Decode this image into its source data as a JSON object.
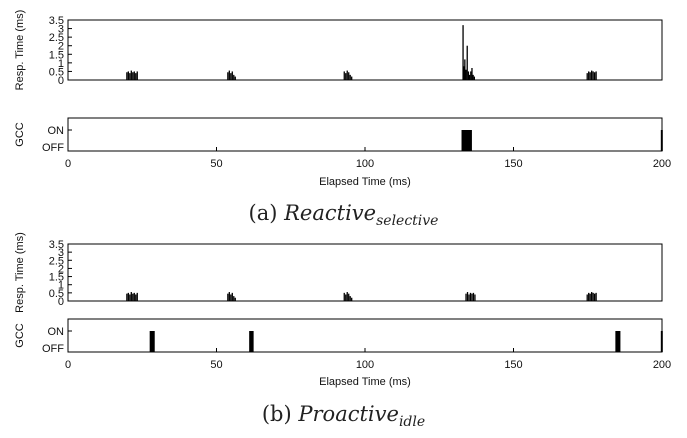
{
  "chart_data": [
    {
      "type": "bar",
      "panel": "a-response",
      "ylabel": "Resp. Time (ms)",
      "ylim": [
        0,
        3.5
      ],
      "xlim": [
        0,
        200
      ],
      "yticks": [
        "0",
        "0.5",
        "1",
        "1.5",
        "2",
        "2.5",
        "3",
        "3.5"
      ],
      "bursts": [
        {
          "x": [
            19.8,
            20.3,
            20.8,
            21.3,
            21.8,
            22.3,
            22.8,
            23.3
          ],
          "y": [
            0.45,
            0.5,
            0.4,
            0.55,
            0.45,
            0.5,
            0.4,
            0.5
          ]
        },
        {
          "x": [
            53.8,
            54.3,
            54.8,
            55.3,
            55.8,
            56.3
          ],
          "y": [
            0.45,
            0.55,
            0.4,
            0.5,
            0.3,
            0.2
          ]
        },
        {
          "x": [
            93.0,
            93.5,
            94.0,
            94.5,
            95.0,
            95.5
          ],
          "y": [
            0.5,
            0.4,
            0.55,
            0.45,
            0.3,
            0.2
          ]
        },
        {
          "x": [
            133.0,
            133.3,
            133.6,
            134.0,
            134.4,
            134.8,
            135.2,
            135.6,
            136.0,
            136.4,
            136.8
          ],
          "y": [
            3.2,
            0.8,
            1.2,
            0.6,
            2.0,
            0.5,
            0.3,
            0.5,
            0.7,
            0.3,
            0.2
          ]
        },
        {
          "x": [
            174.8,
            175.3,
            175.8,
            176.3,
            176.8,
            177.3,
            177.8
          ],
          "y": [
            0.4,
            0.5,
            0.45,
            0.55,
            0.5,
            0.45,
            0.5
          ]
        }
      ]
    },
    {
      "type": "bar",
      "panel": "a-gcc",
      "ylabel": "GCC",
      "yticks": [
        "OFF",
        "ON"
      ],
      "xticks": [
        "0",
        "50",
        "100",
        "150",
        "200"
      ],
      "xlabel": "Elapsed Time (ms)",
      "xlim": [
        0,
        200
      ],
      "on_intervals": [
        [
          132.5,
          136.0
        ],
        [
          199.6,
          200
        ]
      ]
    },
    {
      "type": "bar",
      "panel": "b-response",
      "ylabel": "Resp. Time (ms)",
      "ylim": [
        0,
        3.5
      ],
      "xlim": [
        0,
        200
      ],
      "yticks": [
        "0",
        "0.5",
        "1",
        "1.5",
        "2",
        "2.5",
        "3",
        "3.5"
      ],
      "bursts": [
        {
          "x": [
            19.8,
            20.3,
            20.8,
            21.3,
            21.8,
            22.3,
            22.8,
            23.3
          ],
          "y": [
            0.45,
            0.5,
            0.4,
            0.55,
            0.45,
            0.5,
            0.4,
            0.5
          ]
        },
        {
          "x": [
            53.8,
            54.3,
            54.8,
            55.3,
            55.8,
            56.3
          ],
          "y": [
            0.45,
            0.55,
            0.4,
            0.5,
            0.3,
            0.2
          ]
        },
        {
          "x": [
            93.0,
            93.5,
            94.0,
            94.5,
            95.0,
            95.5
          ],
          "y": [
            0.5,
            0.4,
            0.55,
            0.45,
            0.3,
            0.2
          ]
        },
        {
          "x": [
            134.0,
            134.5,
            135.0,
            135.5,
            136.0,
            136.5,
            137.0
          ],
          "y": [
            0.45,
            0.55,
            0.4,
            0.5,
            0.45,
            0.5,
            0.4
          ]
        },
        {
          "x": [
            174.8,
            175.3,
            175.8,
            176.3,
            176.8,
            177.3,
            177.8
          ],
          "y": [
            0.4,
            0.5,
            0.45,
            0.55,
            0.5,
            0.45,
            0.5
          ]
        }
      ]
    },
    {
      "type": "bar",
      "panel": "b-gcc",
      "ylabel": "GCC",
      "yticks": [
        "OFF",
        "ON"
      ],
      "xticks": [
        "0",
        "50",
        "100",
        "150",
        "200"
      ],
      "xlabel": "Elapsed Time (ms)",
      "xlim": [
        0,
        200
      ],
      "on_intervals": [
        [
          27.5,
          29.2
        ],
        [
          61.0,
          62.5
        ],
        [
          184.3,
          186.0
        ],
        [
          199.6,
          200
        ]
      ]
    }
  ],
  "captions": {
    "a_label": "(a)",
    "a_main": "Reactive",
    "a_sub": "selective",
    "b_label": "(b)",
    "b_main": "Proactive",
    "b_sub": "idle"
  }
}
